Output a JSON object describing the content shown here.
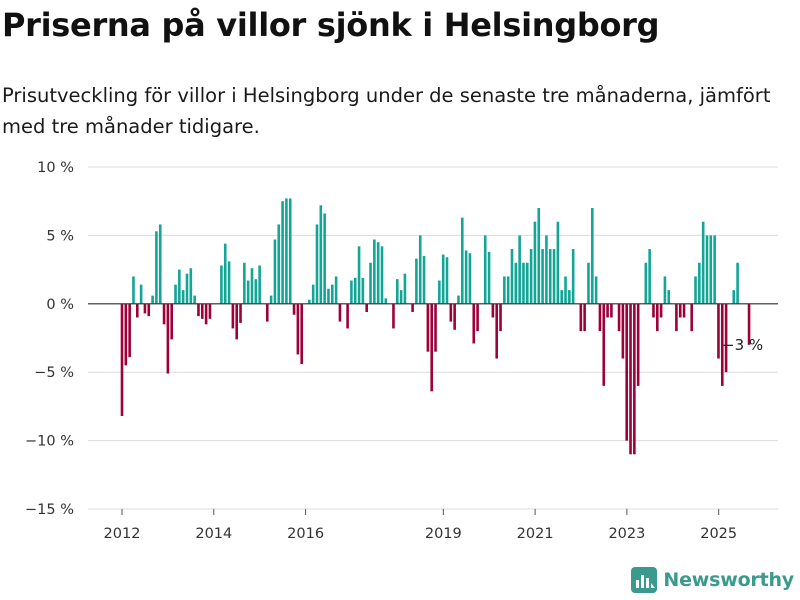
{
  "title": "Priserna på villor sjönk i Helsingborg",
  "subtitle": "Prisutveckling för villor i Helsingborg under de senaste tre månaderna, jämfört med tre månader tidigare.",
  "logo_text": "Newsworthy",
  "colors": {
    "positive": "#13a595",
    "negative": "#9e0038",
    "logo": "#3a9a8d"
  },
  "chart_data": {
    "type": "bar",
    "ylim": [
      -15,
      10
    ],
    "yticks": [
      10,
      5,
      0,
      -5,
      -10,
      -15
    ],
    "ytick_labels": [
      "10 %",
      "5 %",
      "0 %",
      "−5 %",
      "−10 %",
      "−15 %"
    ],
    "x_start": 2012.0,
    "x_step": 0.0833,
    "xticks": [
      2012,
      2014,
      2016,
      2019,
      2021,
      2023,
      2025
    ],
    "annotation": {
      "text": "−3 %",
      "value": -3
    },
    "values": [
      -8.2,
      -4.5,
      -3.9,
      2.0,
      -1.0,
      1.4,
      -0.7,
      -0.9,
      0.6,
      5.3,
      5.8,
      -1.5,
      -5.1,
      -2.6,
      1.4,
      2.5,
      1.0,
      2.2,
      2.6,
      0.6,
      -0.9,
      -1.1,
      -1.5,
      -1.1,
      null,
      null,
      2.8,
      4.4,
      3.1,
      -1.8,
      -2.6,
      -1.4,
      3.0,
      1.7,
      2.6,
      1.8,
      2.8,
      null,
      -1.3,
      0.6,
      4.7,
      5.8,
      7.5,
      7.7,
      7.7,
      -0.8,
      -3.7,
      -4.4,
      null,
      0.3,
      1.4,
      5.8,
      7.2,
      6.6,
      1.1,
      1.4,
      2.0,
      -1.3,
      null,
      -1.8,
      1.7,
      1.9,
      4.2,
      1.9,
      -0.6,
      3.0,
      4.7,
      4.5,
      4.2,
      0.4,
      null,
      -1.8,
      1.8,
      1.0,
      2.2,
      null,
      -0.6,
      3.3,
      5.0,
      3.5,
      -3.5,
      -6.4,
      -3.5,
      1.7,
      3.6,
      3.4,
      -1.3,
      -1.9,
      0.6,
      6.3,
      3.9,
      3.7,
      -2.9,
      -2.0,
      null,
      5.0,
      3.8,
      -1.0,
      -4.0,
      -2.0,
      2.0,
      2.0,
      4.0,
      3.0,
      5.0,
      3.0,
      3.0,
      4.0,
      6.0,
      7.0,
      4.0,
      5.0,
      4.0,
      4.0,
      6.0,
      1.0,
      2.0,
      1.0,
      4.0,
      null,
      -2.0,
      -2.0,
      3.0,
      7.0,
      2.0,
      -2.0,
      -6.0,
      -1.0,
      -1.0,
      null,
      -2.0,
      -4.0,
      -10.0,
      -11.0,
      -11.0,
      -6.0,
      null,
      3.0,
      4.0,
      -1.0,
      -2.0,
      -1.0,
      2.0,
      1.0,
      null,
      -2.0,
      -1.0,
      -1.0,
      null,
      -2.0,
      2.0,
      3.0,
      6.0,
      5.0,
      5.0,
      5.0,
      -4.0,
      -6.0,
      -5.0,
      null,
      1.0,
      3.0,
      null,
      null,
      -3.0
    ]
  }
}
